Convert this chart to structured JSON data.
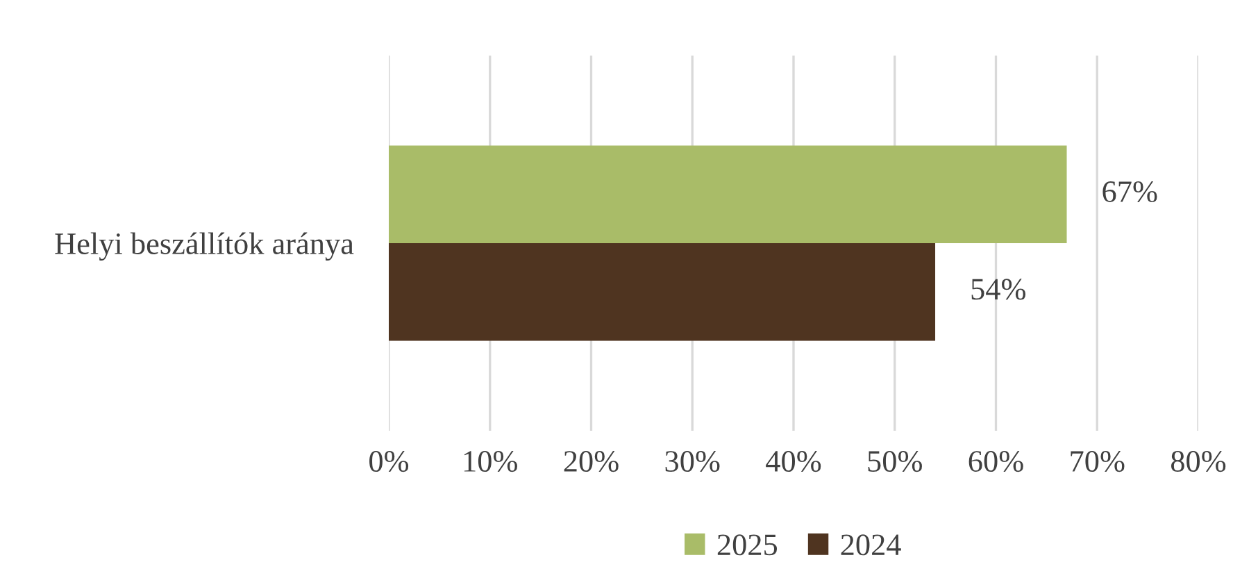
{
  "chart_data": {
    "type": "bar",
    "orientation": "horizontal",
    "categories": [
      "Helyi beszállítók aránya"
    ],
    "series": [
      {
        "name": "2025",
        "color": "#a9bc68",
        "values": [
          67
        ],
        "value_labels": [
          "67%"
        ]
      },
      {
        "name": "2024",
        "color": "#4f3420",
        "values": [
          54
        ],
        "value_labels": [
          "54%"
        ]
      }
    ],
    "xlim": [
      0,
      80
    ],
    "xticks": [
      {
        "value": 0,
        "label": "0%"
      },
      {
        "value": 10,
        "label": "10%"
      },
      {
        "value": 20,
        "label": "20%"
      },
      {
        "value": 30,
        "label": "30%"
      },
      {
        "value": 40,
        "label": "40%"
      },
      {
        "value": 50,
        "label": "50%"
      },
      {
        "value": 60,
        "label": "60%"
      },
      {
        "value": 70,
        "label": "70%"
      },
      {
        "value": 80,
        "label": "80%"
      }
    ],
    "grid": "x",
    "legend": "bottom"
  }
}
